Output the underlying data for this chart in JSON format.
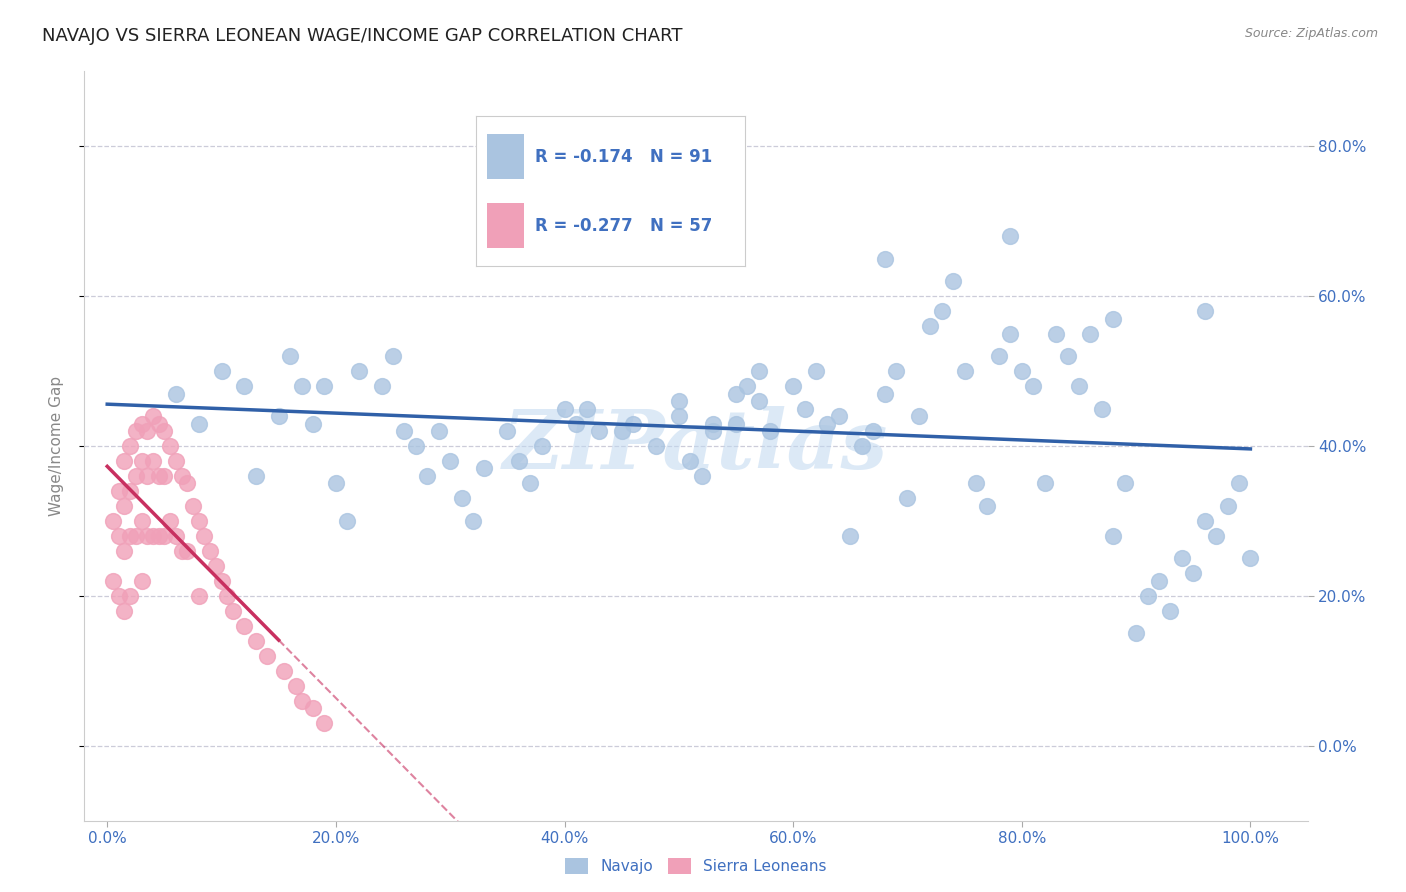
{
  "title": "NAVAJO VS SIERRA LEONEAN WAGE/INCOME GAP CORRELATION CHART",
  "source_text": "Source: ZipAtlas.com",
  "ylabel": "Wage/Income Gap",
  "xlim": [
    -0.02,
    1.05
  ],
  "ylim": [
    -0.1,
    0.9
  ],
  "xticks": [
    0.0,
    0.2,
    0.4,
    0.6,
    0.8,
    1.0
  ],
  "yticks": [
    0.0,
    0.2,
    0.4,
    0.6,
    0.8
  ],
  "xtick_labels": [
    "0.0%",
    "20.0%",
    "40.0%",
    "60.0%",
    "80.0%",
    "100.0%"
  ],
  "ytick_labels": [
    "0.0%",
    "20.0%",
    "40.0%",
    "60.0%",
    "80.0%"
  ],
  "navajo_color": "#aac4e0",
  "sierra_color": "#f0a0b8",
  "navajo_line_color": "#3060a8",
  "sierra_line_color": "#c83060",
  "navajo_R": -0.174,
  "navajo_N": 91,
  "sierra_R": -0.277,
  "sierra_N": 57,
  "legend_label_navajo": "Navajo",
  "legend_label_sierra": "Sierra Leoneans",
  "watermark": "ZIPatlas",
  "background_color": "#ffffff",
  "grid_color": "#c0c0d0",
  "title_fontsize": 13,
  "axis_label_fontsize": 11,
  "tick_fontsize": 11,
  "tick_color": "#4070c0",
  "navajo_x": [
    0.06,
    0.08,
    0.1,
    0.12,
    0.13,
    0.15,
    0.16,
    0.17,
    0.18,
    0.19,
    0.2,
    0.21,
    0.22,
    0.24,
    0.25,
    0.26,
    0.27,
    0.28,
    0.29,
    0.3,
    0.31,
    0.32,
    0.33,
    0.35,
    0.36,
    0.37,
    0.38,
    0.4,
    0.41,
    0.42,
    0.43,
    0.45,
    0.46,
    0.48,
    0.5,
    0.51,
    0.52,
    0.53,
    0.55,
    0.56,
    0.57,
    0.58,
    0.6,
    0.61,
    0.62,
    0.63,
    0.64,
    0.65,
    0.66,
    0.67,
    0.68,
    0.69,
    0.7,
    0.71,
    0.72,
    0.73,
    0.74,
    0.75,
    0.76,
    0.77,
    0.78,
    0.79,
    0.8,
    0.81,
    0.82,
    0.83,
    0.84,
    0.85,
    0.86,
    0.87,
    0.88,
    0.89,
    0.9,
    0.91,
    0.92,
    0.93,
    0.94,
    0.95,
    0.96,
    0.97,
    0.98,
    0.99,
    1.0,
    0.5,
    0.53,
    0.55,
    0.57,
    0.68,
    0.79,
    0.88,
    0.96
  ],
  "navajo_y": [
    0.47,
    0.43,
    0.5,
    0.48,
    0.36,
    0.44,
    0.52,
    0.48,
    0.43,
    0.48,
    0.35,
    0.3,
    0.5,
    0.48,
    0.52,
    0.42,
    0.4,
    0.36,
    0.42,
    0.38,
    0.33,
    0.3,
    0.37,
    0.42,
    0.38,
    0.35,
    0.4,
    0.45,
    0.43,
    0.45,
    0.42,
    0.42,
    0.43,
    0.4,
    0.44,
    0.38,
    0.36,
    0.42,
    0.43,
    0.48,
    0.46,
    0.42,
    0.48,
    0.45,
    0.5,
    0.43,
    0.44,
    0.28,
    0.4,
    0.42,
    0.47,
    0.5,
    0.33,
    0.44,
    0.56,
    0.58,
    0.62,
    0.5,
    0.35,
    0.32,
    0.52,
    0.55,
    0.5,
    0.48,
    0.35,
    0.55,
    0.52,
    0.48,
    0.55,
    0.45,
    0.28,
    0.35,
    0.15,
    0.2,
    0.22,
    0.18,
    0.25,
    0.23,
    0.3,
    0.28,
    0.32,
    0.35,
    0.25,
    0.46,
    0.43,
    0.47,
    0.5,
    0.65,
    0.68,
    0.57,
    0.58
  ],
  "sierra_x": [
    0.005,
    0.005,
    0.01,
    0.01,
    0.01,
    0.015,
    0.015,
    0.015,
    0.015,
    0.02,
    0.02,
    0.02,
    0.02,
    0.025,
    0.025,
    0.025,
    0.03,
    0.03,
    0.03,
    0.03,
    0.035,
    0.035,
    0.035,
    0.04,
    0.04,
    0.04,
    0.045,
    0.045,
    0.045,
    0.05,
    0.05,
    0.05,
    0.055,
    0.055,
    0.06,
    0.06,
    0.065,
    0.065,
    0.07,
    0.07,
    0.075,
    0.08,
    0.08,
    0.085,
    0.09,
    0.095,
    0.1,
    0.105,
    0.11,
    0.12,
    0.13,
    0.14,
    0.155,
    0.165,
    0.17,
    0.18,
    0.19
  ],
  "sierra_y": [
    0.3,
    0.22,
    0.34,
    0.28,
    0.2,
    0.38,
    0.32,
    0.26,
    0.18,
    0.4,
    0.34,
    0.28,
    0.2,
    0.42,
    0.36,
    0.28,
    0.43,
    0.38,
    0.3,
    0.22,
    0.42,
    0.36,
    0.28,
    0.44,
    0.38,
    0.28,
    0.43,
    0.36,
    0.28,
    0.42,
    0.36,
    0.28,
    0.4,
    0.3,
    0.38,
    0.28,
    0.36,
    0.26,
    0.35,
    0.26,
    0.32,
    0.3,
    0.2,
    0.28,
    0.26,
    0.24,
    0.22,
    0.2,
    0.18,
    0.16,
    0.14,
    0.12,
    0.1,
    0.08,
    0.06,
    0.05,
    0.03
  ]
}
